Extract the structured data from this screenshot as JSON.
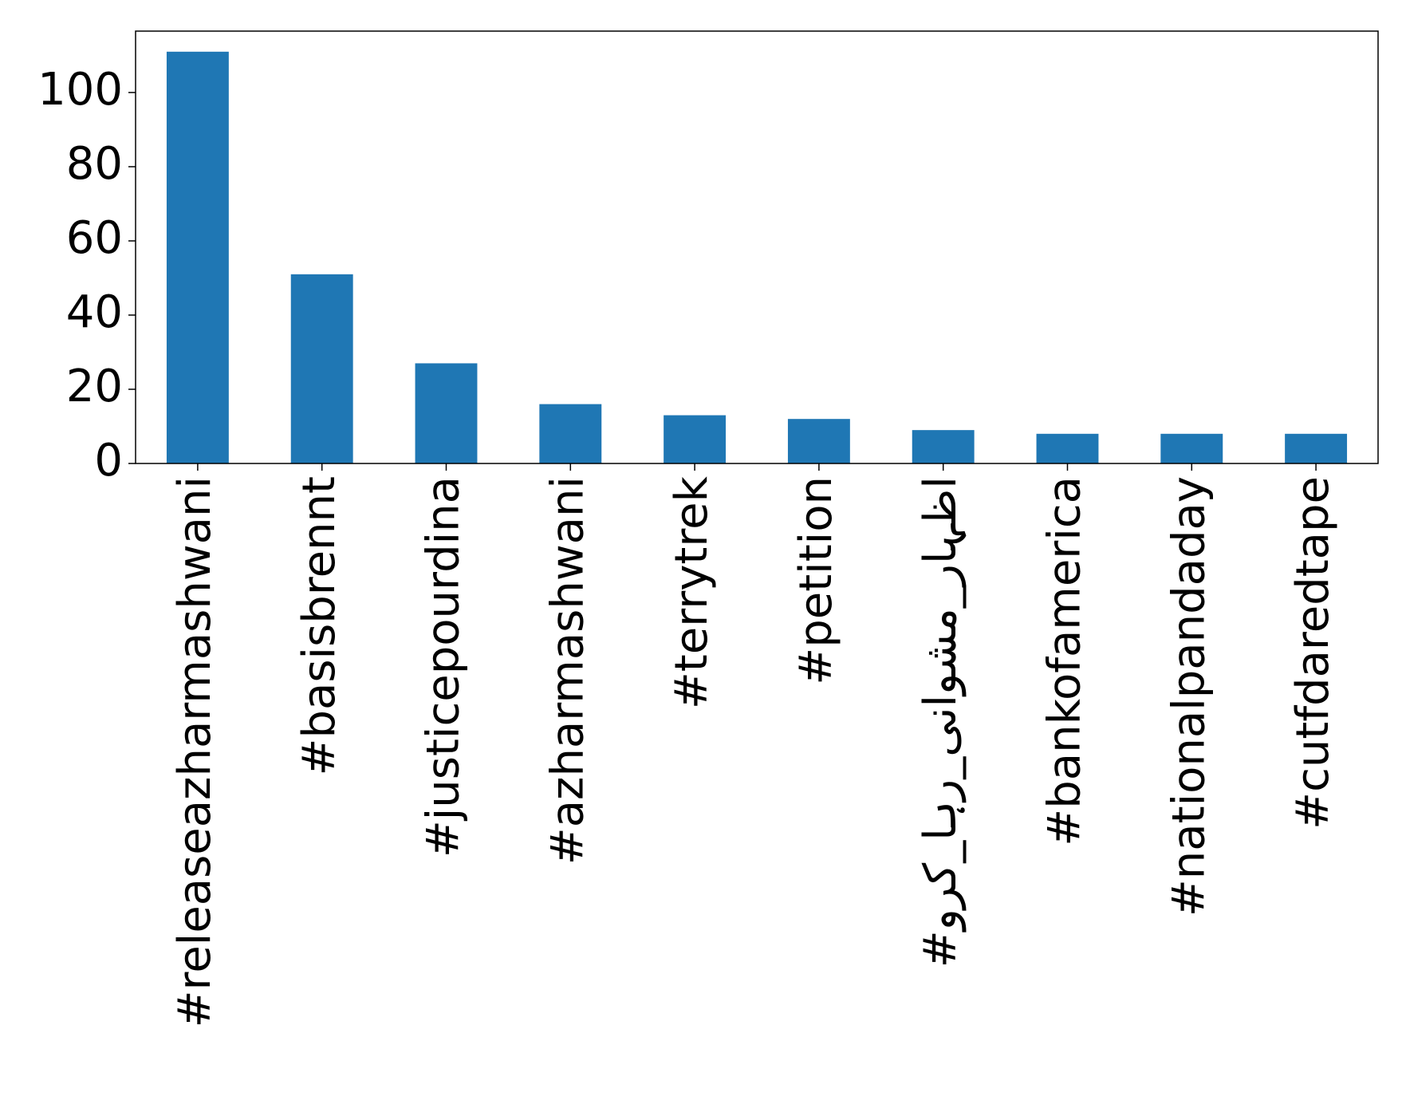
{
  "chart_data": {
    "type": "bar",
    "categories": [
      "#releaseazharmashwani",
      "#basisbrennt",
      "#justicepourdina",
      "#azharmashwani",
      "#terrytrek",
      "#petition",
      "#اظہار_مشوانی_رہا_کرو",
      "#bankofamerica",
      "#nationalpandaday",
      "#cutfdaredtape"
    ],
    "values": [
      111,
      51,
      27,
      16,
      13,
      12,
      9,
      8,
      8,
      8
    ],
    "color": "#1f77b4",
    "ylim": [
      0,
      116.55
    ],
    "yticks": [
      0,
      20,
      40,
      60,
      80,
      100
    ],
    "grid": false
  }
}
